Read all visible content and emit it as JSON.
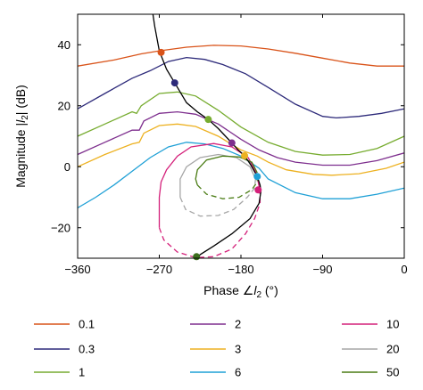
{
  "chart_data": {
    "type": "line",
    "title": "",
    "xlabel": "Phase ∠l₂ (°)",
    "xlabel_parts": {
      "prefix": "Phase ∠",
      "symbol": "l",
      "sub": "2",
      "suffix": " (°)"
    },
    "ylabel": "Magnitude |l₂| (dB)",
    "ylabel_parts": {
      "prefix": "Magnitude |",
      "symbol": "l",
      "sub": "2",
      "suffix": "| (dB)"
    },
    "xlim": [
      -360,
      0
    ],
    "ylim": [
      -30,
      50
    ],
    "xticks": [
      -360,
      -270,
      -180,
      -90,
      0
    ],
    "xtick_labels": [
      "−360",
      "−270",
      "−180",
      "−90",
      "0"
    ],
    "yticks": [
      -20,
      0,
      20,
      40
    ],
    "ytick_labels": [
      "−20",
      "0",
      "20",
      "40"
    ],
    "grid": false,
    "legend_position": "bottom",
    "series": [
      {
        "name": "0.1",
        "color": "#d95319",
        "points": [
          [
            -360,
            33
          ],
          [
            -320,
            35
          ],
          [
            -290,
            37
          ],
          [
            -270,
            38
          ],
          [
            -240,
            39.2
          ],
          [
            -210,
            39.8
          ],
          [
            -180,
            39.6
          ],
          [
            -150,
            38.6
          ],
          [
            -120,
            37.2
          ],
          [
            -90,
            35.6
          ],
          [
            -60,
            34
          ],
          [
            -30,
            33
          ],
          [
            0,
            33
          ]
        ],
        "marker": [
          -268,
          37.5
        ]
      },
      {
        "name": "0.3",
        "color": "#2d2a7a",
        "points": [
          [
            -360,
            19
          ],
          [
            -330,
            24
          ],
          [
            -300,
            29
          ],
          [
            -280,
            31.5
          ],
          [
            -260,
            34.5
          ],
          [
            -240,
            35.8
          ],
          [
            -220,
            35.2
          ],
          [
            -200,
            33.5
          ],
          [
            -175,
            30.5
          ],
          [
            -150,
            26
          ],
          [
            -120,
            20.5
          ],
          [
            -90,
            16.5
          ],
          [
            -75,
            16
          ],
          [
            -50,
            16.5
          ],
          [
            -25,
            17.5
          ],
          [
            0,
            19
          ]
        ],
        "marker": [
          -253,
          27.5
        ]
      },
      {
        "name": "1",
        "color": "#77ac30",
        "points": [
          [
            -360,
            10
          ],
          [
            -330,
            14
          ],
          [
            -300,
            18
          ],
          [
            -295,
            17.5
          ],
          [
            -290,
            20
          ],
          [
            -270,
            24
          ],
          [
            -250,
            24.5
          ],
          [
            -230,
            23.2
          ],
          [
            -205,
            18.5
          ],
          [
            -180,
            13
          ],
          [
            -150,
            8
          ],
          [
            -120,
            5
          ],
          [
            -90,
            3.8
          ],
          [
            -60,
            4
          ],
          [
            -30,
            6
          ],
          [
            0,
            10
          ]
        ],
        "marker": [
          -216,
          15.5
        ]
      },
      {
        "name": "2",
        "color": "#7e2f8e",
        "points": [
          [
            -360,
            4
          ],
          [
            -330,
            8
          ],
          [
            -300,
            12
          ],
          [
            -292,
            12
          ],
          [
            -287,
            15
          ],
          [
            -270,
            17.5
          ],
          [
            -250,
            18
          ],
          [
            -230,
            17.2
          ],
          [
            -205,
            14
          ],
          [
            -180,
            9
          ],
          [
            -160,
            5.5
          ],
          [
            -140,
            3
          ],
          [
            -120,
            1.5
          ],
          [
            -90,
            0.5
          ],
          [
            -60,
            0.5
          ],
          [
            -30,
            2
          ],
          [
            0,
            4.5
          ]
        ],
        "marker": [
          -190,
          7.8
        ]
      },
      {
        "name": "3",
        "color": "#edb120",
        "points": [
          [
            -360,
            0
          ],
          [
            -330,
            4
          ],
          [
            -300,
            7.5
          ],
          [
            -292,
            8
          ],
          [
            -287,
            11
          ],
          [
            -270,
            13.5
          ],
          [
            -250,
            14
          ],
          [
            -230,
            13.2
          ],
          [
            -205,
            10
          ],
          [
            -180,
            5.5
          ],
          [
            -162,
            3.5
          ],
          [
            -150,
            1.5
          ],
          [
            -130,
            -1
          ],
          [
            -100,
            -2.5
          ],
          [
            -80,
            -2.8
          ],
          [
            -50,
            -2.3
          ],
          [
            -20,
            -0.5
          ],
          [
            0,
            1.5
          ]
        ],
        "marker": [
          -176,
          3.6
        ]
      },
      {
        "name": "6",
        "color": "#1fa0d6",
        "points": [
          [
            -360,
            -13.5
          ],
          [
            -340,
            -10
          ],
          [
            -320,
            -6
          ],
          [
            -300,
            -1.5
          ],
          [
            -280,
            3
          ],
          [
            -260,
            6.5
          ],
          [
            -240,
            8
          ],
          [
            -220,
            7.5
          ],
          [
            -200,
            6
          ],
          [
            -180,
            3.5
          ],
          [
            -160,
            -0.5
          ],
          [
            -150,
            -4
          ],
          [
            -120,
            -8.5
          ],
          [
            -90,
            -10.5
          ],
          [
            -60,
            -10.5
          ],
          [
            -30,
            -9
          ],
          [
            0,
            -7
          ]
        ],
        "marker": [
          -162,
          -3.2
        ]
      },
      {
        "name": "10",
        "color": "#d4207a",
        "segments": [
          {
            "dash": false,
            "points": [
              [
                -159,
                -8
              ],
              [
                -163,
                -2
              ],
              [
                -172,
                3
              ],
              [
                -190,
                6.5
              ],
              [
                -210,
                7.6
              ],
              [
                -235,
                6.5
              ],
              [
                -250,
                3.5
              ],
              [
                -262,
                -1
              ],
              [
                -268,
                -5
              ],
              [
                -270,
                -10
              ],
              [
                -270,
                -20
              ]
            ]
          },
          {
            "dash": true,
            "points": [
              [
                -270,
                -20
              ],
              [
                -265,
                -24
              ],
              [
                -250,
                -28
              ],
              [
                -230,
                -29.8
              ],
              [
                -210,
                -29.5
              ],
              [
                -190,
                -27
              ],
              [
                -175,
                -22
              ],
              [
                -165,
                -17
              ],
              [
                -159,
                -12
              ],
              [
                -159,
                -8
              ]
            ]
          }
        ],
        "marker": [
          -161,
          -7.6
        ]
      },
      {
        "name": "20",
        "color": "#a6a6a6",
        "segments": [
          {
            "dash": false,
            "points": [
              [
                -164,
                -4
              ],
              [
                -170,
                0
              ],
              [
                -185,
                3
              ],
              [
                -205,
                4
              ],
              [
                -225,
                3
              ],
              [
                -240,
                0
              ],
              [
                -247,
                -4
              ],
              [
                -247,
                -10
              ]
            ]
          },
          {
            "dash": true,
            "points": [
              [
                -247,
                -10
              ],
              [
                -241,
                -14
              ],
              [
                -225,
                -16.2
              ],
              [
                -205,
                -16
              ],
              [
                -188,
                -14
              ],
              [
                -173,
                -10
              ],
              [
                -165,
                -7
              ],
              [
                -164,
                -4
              ]
            ]
          }
        ]
      },
      {
        "name": "50",
        "color": "#4a7c14",
        "segments": [
          {
            "dash": false,
            "points": [
              [
                -162,
                -2
              ],
              [
                -168,
                1.5
              ],
              [
                -182,
                3.2
              ],
              [
                -200,
                3.5
              ],
              [
                -218,
                2.2
              ],
              [
                -228,
                -1
              ],
              [
                -230,
                -4
              ],
              [
                -228,
                -6
              ]
            ]
          },
          {
            "dash": true,
            "points": [
              [
                -228,
                -6
              ],
              [
                -218,
                -9
              ],
              [
                -200,
                -10.5
              ],
              [
                -182,
                -10
              ],
              [
                -168,
                -7.5
              ],
              [
                -162,
                -5
              ],
              [
                -162,
                -2
              ]
            ]
          }
        ]
      }
    ],
    "locus": {
      "color": "#000000",
      "points": [
        [
          -280,
          56
        ],
        [
          -275,
          46
        ],
        [
          -270,
          38
        ],
        [
          -262,
          32
        ],
        [
          -253,
          27.5
        ],
        [
          -240,
          21
        ],
        [
          -228,
          18
        ],
        [
          -216,
          15.5
        ],
        [
          -205,
          12.5
        ],
        [
          -197,
          10
        ],
        [
          -190,
          7.8
        ],
        [
          -183,
          5.5
        ],
        [
          -176,
          3.6
        ],
        [
          -169,
          0.5
        ],
        [
          -162,
          -3.2
        ],
        [
          -159,
          -6
        ],
        [
          -158,
          -8
        ],
        [
          -160,
          -12
        ],
        [
          -170,
          -17
        ],
        [
          -190,
          -22
        ],
        [
          -210,
          -26
        ],
        [
          -225,
          -28.8
        ],
        [
          -229,
          -30
        ],
        [
          -232,
          -32
        ]
      ],
      "marker": [
        -229,
        -29.5
      ]
    }
  }
}
